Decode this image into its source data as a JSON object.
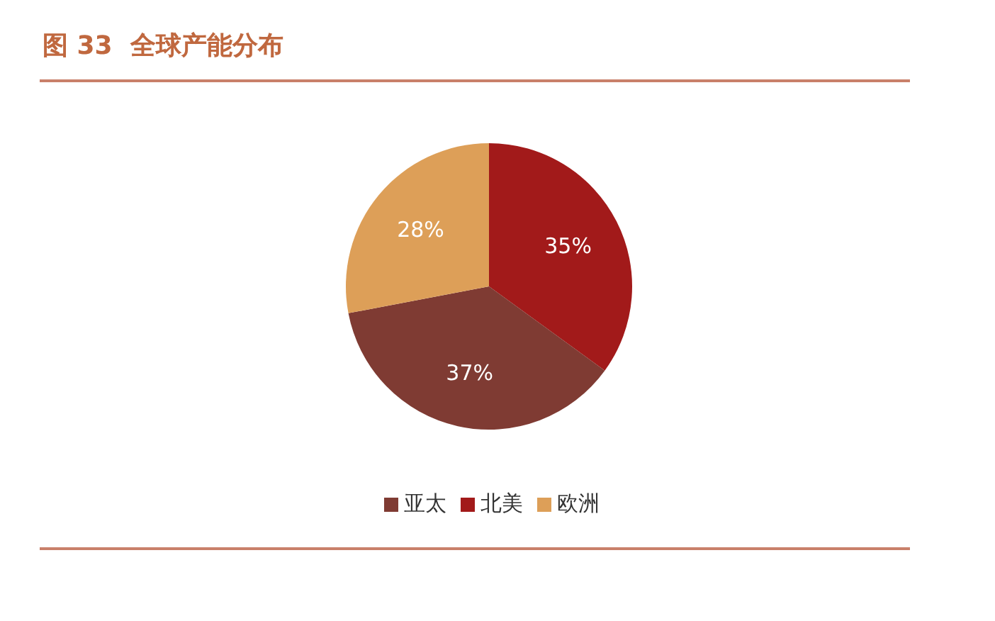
{
  "chart_data": {
    "type": "pie",
    "title": "图 33  全球产能分布",
    "categories": [
      "北美",
      "亚太",
      "欧洲"
    ],
    "values": [
      35,
      37,
      28
    ],
    "colors": [
      "#a21a1a",
      "#7f3b33",
      "#dd9f58"
    ],
    "value_labels": [
      "35%",
      "37%",
      "28%"
    ],
    "legend": "bottom"
  }
}
